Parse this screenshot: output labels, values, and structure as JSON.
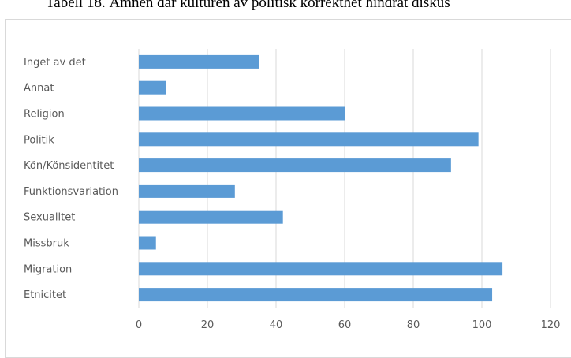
{
  "caption": "Tabell 18. Ämnen där kulturen av politisk korrekthet hindrat diskus",
  "chart_data": {
    "type": "bar",
    "orientation": "horizontal",
    "categories": [
      "Inget av det",
      "Annat",
      "Religion",
      "Politik",
      "Kön/Könsidentitet",
      "Funktionsvariation",
      "Sexualitet",
      "Missbruk",
      "Migration",
      "Etnicitet"
    ],
    "values": [
      35,
      8,
      60,
      99,
      91,
      28,
      42,
      5,
      106,
      103
    ],
    "xticks": [
      "0",
      "20",
      "40",
      "60",
      "80",
      "100",
      "120"
    ],
    "xlim": [
      0,
      120
    ],
    "grid": "vertical",
    "bar_color": "#5b9bd5",
    "grid_color": "#d9d9d9",
    "title": "",
    "xlabel": "",
    "ylabel": ""
  }
}
